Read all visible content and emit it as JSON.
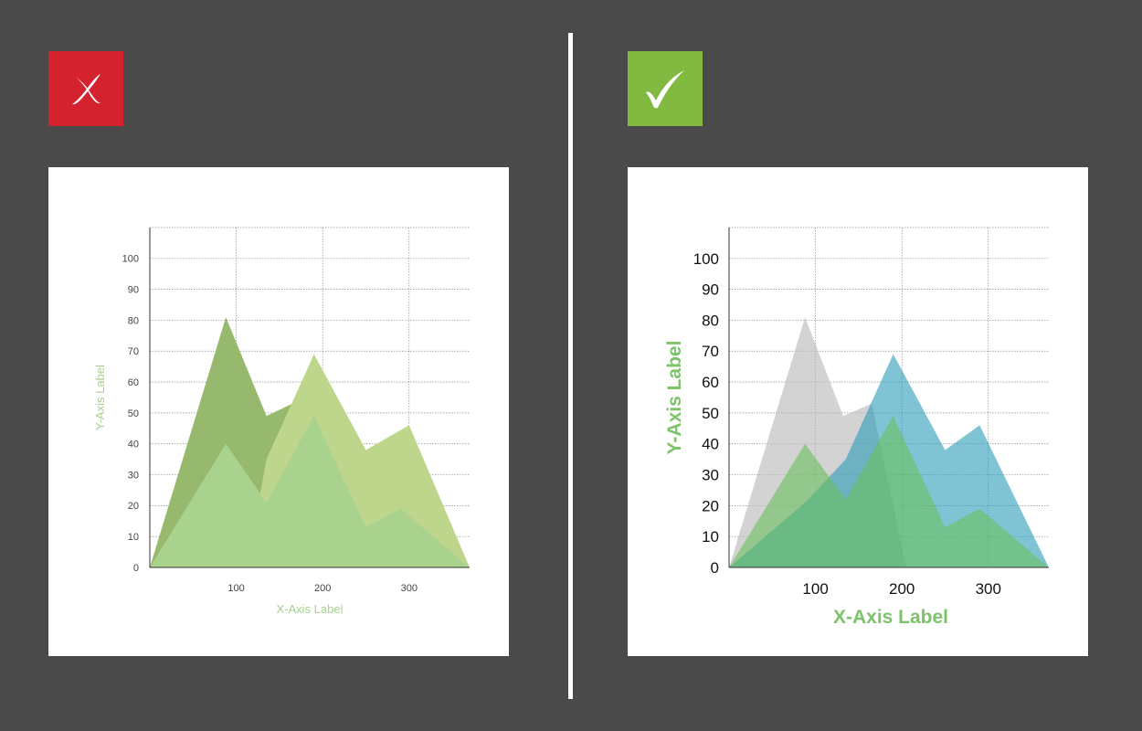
{
  "colors": {
    "background": "#4a4a4a",
    "panel": "#ffffff",
    "bad_badge": "#d4222e",
    "good_badge": "#82b941",
    "label_green": "#7dc36b"
  },
  "badges": {
    "bad": {
      "icon": "cross-icon"
    },
    "good": {
      "icon": "check-icon"
    }
  },
  "chart_data": [
    {
      "type": "area",
      "title": "",
      "xlabel": "X-Axis Label",
      "ylabel": "Y-Axis Label",
      "xlim": [
        0,
        370
      ],
      "ylim": [
        0,
        110
      ],
      "x_ticks": [
        100,
        200,
        300
      ],
      "y_ticks": [
        0,
        10,
        20,
        30,
        40,
        50,
        60,
        70,
        80,
        90,
        100
      ],
      "grid": true,
      "label_color": "#a6d08e",
      "tick_color": "#444444",
      "tick_font_size": 11,
      "label_font_size": 13,
      "label_weight": "normal",
      "series": [
        {
          "color": "#96b96e",
          "opacity": 1,
          "x": [
            0,
            88,
            135,
            165,
            190
          ],
          "y": [
            0,
            81,
            49,
            53,
            0
          ]
        },
        {
          "color": "#bed68c",
          "opacity": 1,
          "x": [
            0,
            112,
            135,
            190,
            250,
            300,
            370
          ],
          "y": [
            0,
            0,
            35,
            69,
            38,
            46,
            0
          ]
        },
        {
          "color": "#a8d28e",
          "opacity": 1,
          "x": [
            0,
            88,
            135,
            190,
            250,
            290,
            370
          ],
          "y": [
            0,
            40,
            21,
            49,
            13,
            19,
            0
          ]
        }
      ]
    },
    {
      "type": "area",
      "title": "",
      "xlabel": "X-Axis Label",
      "ylabel": "Y-Axis Label",
      "xlim": [
        0,
        370
      ],
      "ylim": [
        0,
        110
      ],
      "x_ticks": [
        100,
        200,
        300
      ],
      "y_ticks": [
        0,
        10,
        20,
        30,
        40,
        50,
        60,
        70,
        80,
        90,
        100
      ],
      "grid": true,
      "label_color": "#7dc36b",
      "tick_color": "#111111",
      "tick_font_size": 17,
      "label_font_size": 21,
      "label_weight": "bold",
      "series": [
        {
          "color": "#bcbcbc",
          "opacity": 0.65,
          "x": [
            0,
            88,
            132,
            165,
            205,
            250,
            290,
            370
          ],
          "y": [
            0,
            81,
            49,
            53,
            0,
            0,
            0,
            0
          ]
        },
        {
          "color": "#2a9bb8",
          "opacity": 0.6,
          "x": [
            0,
            88,
            135,
            190,
            250,
            290,
            370
          ],
          "y": [
            0,
            21,
            35,
            69,
            38,
            46,
            0
          ]
        },
        {
          "color": "#6bbf5c",
          "opacity": 0.6,
          "x": [
            0,
            88,
            135,
            190,
            250,
            290,
            370
          ],
          "y": [
            0,
            40,
            22,
            49,
            13,
            19,
            0
          ]
        }
      ]
    }
  ]
}
